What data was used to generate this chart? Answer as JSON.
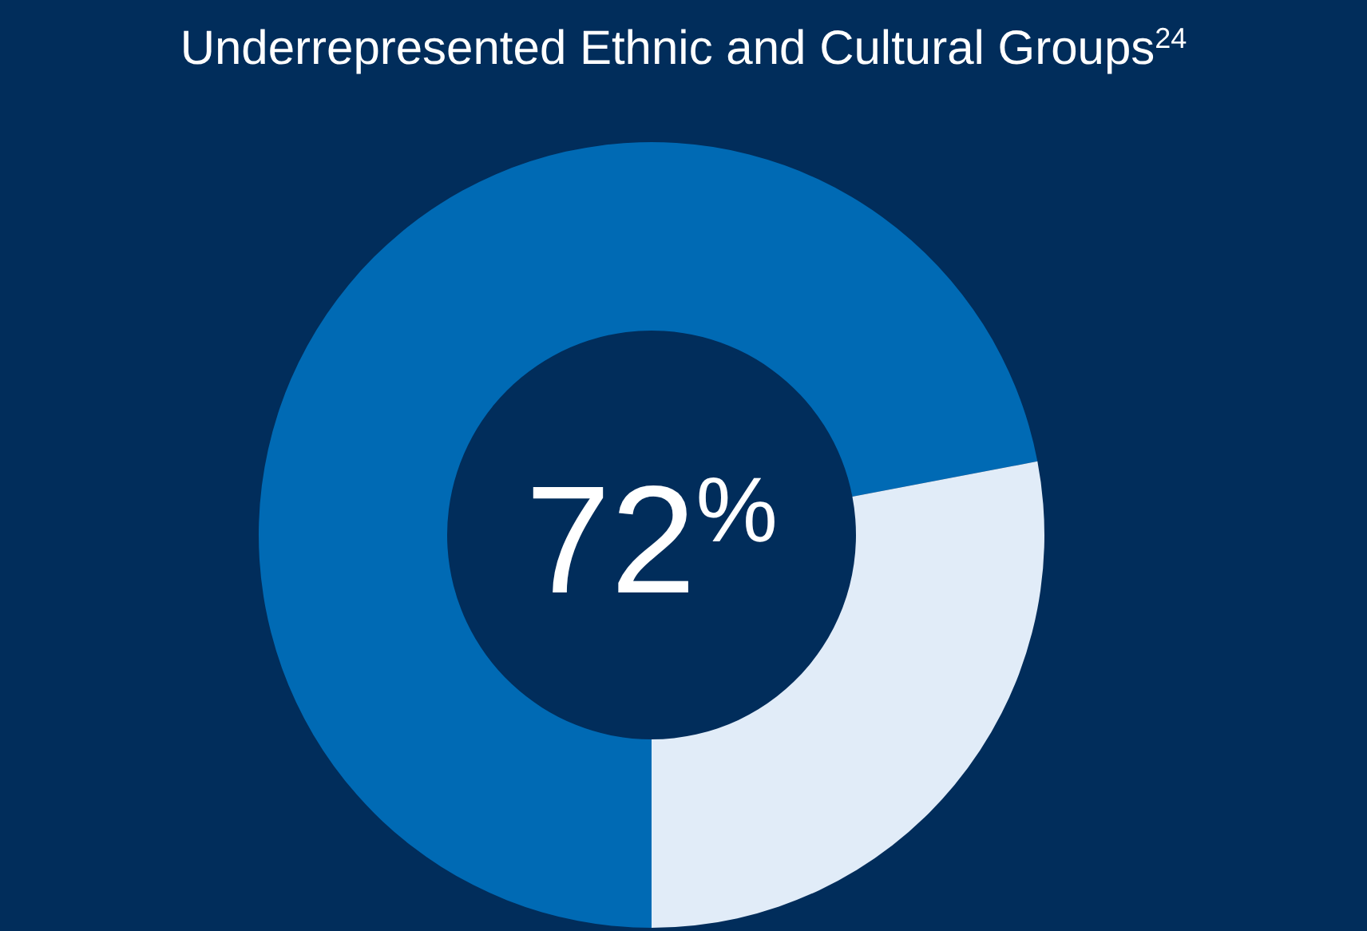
{
  "chart_data": {
    "type": "donut",
    "title": "Underrepresented Ethnic and Cultural Groups$^{24}$",
    "categories": [
      null,
      null
    ],
    "values": [
      72,
      28
    ],
    "colors": [
      "#006ab4",
      "#e1ecf8"
    ],
    "value_labels": [
      "72$^{%}$",
      null
    ]
  }
}
